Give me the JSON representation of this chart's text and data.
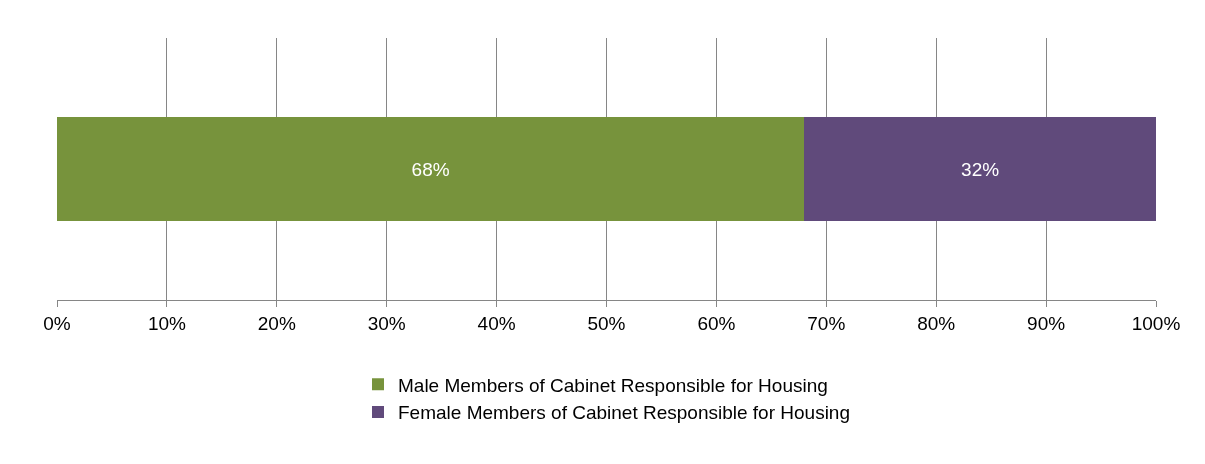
{
  "chart_data": {
    "type": "bar",
    "orientation": "horizontal",
    "stacked": true,
    "categories": [
      null
    ],
    "series": [
      {
        "name": "Male Members of Cabinet Responsible for Housing",
        "color": "#77933c",
        "values": [
          68
        ],
        "value_labels": [
          "68%"
        ]
      },
      {
        "name": "Female Members of Cabinet Responsible for Housing",
        "color": "#604a7b",
        "values": [
          32
        ],
        "value_labels": [
          "32%"
        ]
      }
    ],
    "xlim": [
      0,
      100
    ],
    "xticks": [
      {
        "value": 0,
        "label": "0%"
      },
      {
        "value": 10,
        "label": "10%"
      },
      {
        "value": 20,
        "label": "20%"
      },
      {
        "value": 30,
        "label": "30%"
      },
      {
        "value": 40,
        "label": "40%"
      },
      {
        "value": 50,
        "label": "50%"
      },
      {
        "value": 60,
        "label": "60%"
      },
      {
        "value": 70,
        "label": "70%"
      },
      {
        "value": 80,
        "label": "80%"
      },
      {
        "value": 90,
        "label": "90%"
      },
      {
        "value": 100,
        "label": "100%"
      }
    ],
    "grid": "x",
    "legend": "bottom"
  }
}
